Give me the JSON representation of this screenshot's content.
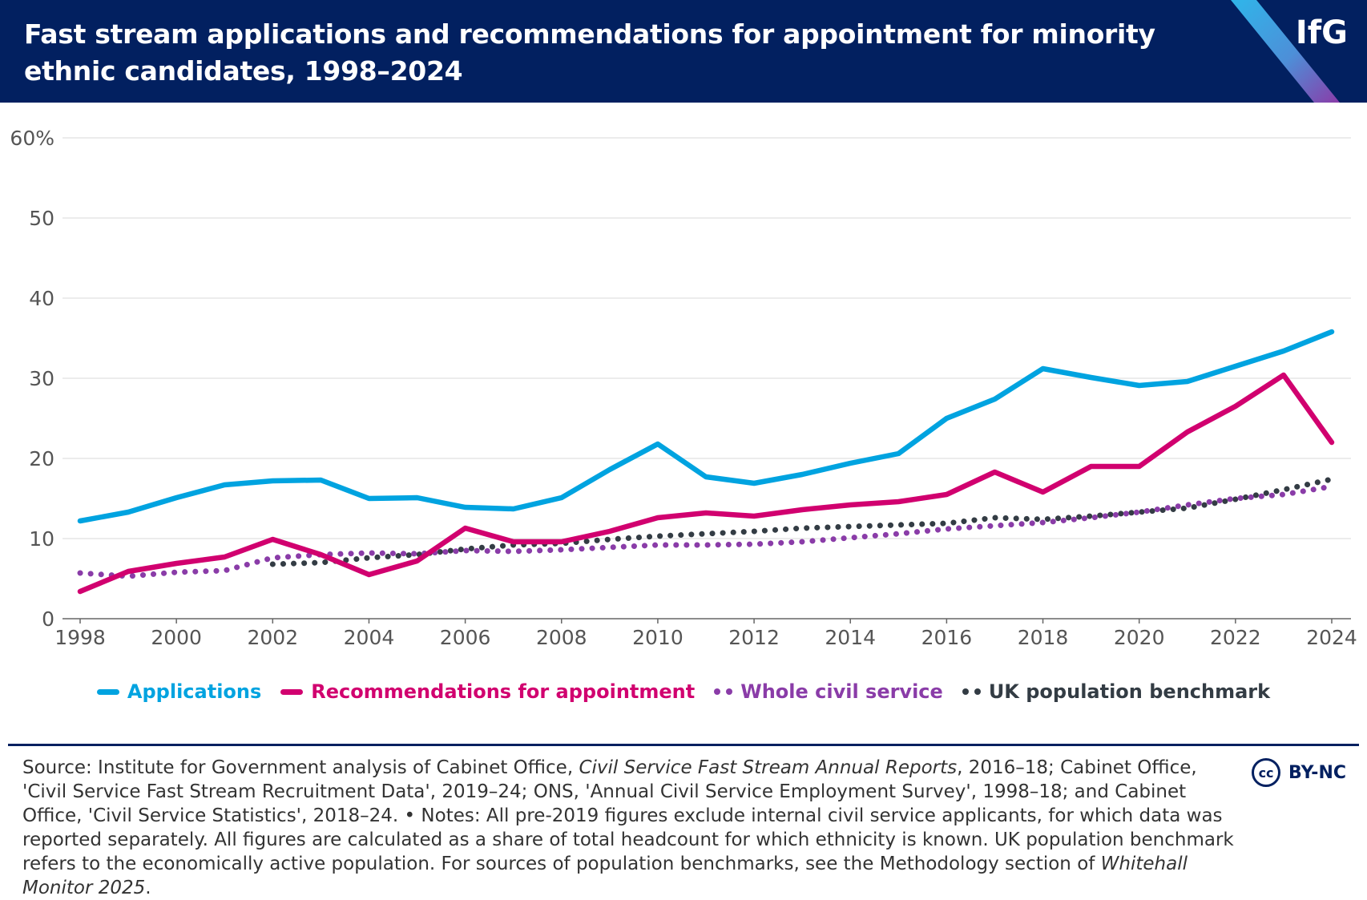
{
  "header": {
    "title": "Fast stream applications and recommendations for appointment for minority ethnic candidates, 1998–2024",
    "logo": "IfG"
  },
  "colors": {
    "header_bg": "#022060",
    "applications": "#00a3e0",
    "recommendations": "#d1006f",
    "whole_civil_service": "#8a3ca8",
    "uk_population": "#333c44",
    "grid": "#e6e6e6"
  },
  "chart_data": {
    "type": "line",
    "title": "Fast stream applications and recommendations for appointment for minority ethnic candidates, 1998–2024",
    "xlabel": "",
    "ylabel": "",
    "xlim": [
      1998,
      2024
    ],
    "ylim": [
      0,
      60
    ],
    "y_ticks": [
      "0",
      "10",
      "20",
      "30",
      "40",
      "50",
      "60%"
    ],
    "x_ticks": [
      "1998",
      "2000",
      "2002",
      "2004",
      "2006",
      "2008",
      "2010",
      "2012",
      "2014",
      "2016",
      "2018",
      "2020",
      "2022",
      "2024"
    ],
    "grid": "horizontal",
    "legend_position": "bottom",
    "series": [
      {
        "name": "Applications",
        "style": "solid",
        "points": [
          [
            1998,
            12.2
          ],
          [
            1999,
            13.3
          ],
          [
            2000,
            15.1
          ],
          [
            2001,
            16.7
          ],
          [
            2002,
            17.2
          ],
          [
            2003,
            17.3
          ],
          [
            2004,
            15.0
          ],
          [
            2005,
            15.1
          ],
          [
            2006,
            13.9
          ],
          [
            2007,
            13.7
          ],
          [
            2008,
            15.1
          ],
          [
            2009,
            18.6
          ],
          [
            2010,
            21.8
          ],
          [
            2011,
            17.7
          ],
          [
            2012,
            16.9
          ],
          [
            2013,
            18.0
          ],
          [
            2014,
            19.4
          ],
          [
            2015,
            20.6
          ],
          [
            2016,
            25.0
          ],
          [
            2017,
            27.4
          ],
          [
            2018,
            31.2
          ],
          [
            2019,
            30.1
          ],
          [
            2020,
            29.1
          ],
          [
            2021,
            29.6
          ],
          [
            2022,
            31.5
          ],
          [
            2023,
            33.4
          ],
          [
            2024,
            35.8
          ]
        ]
      },
      {
        "name": "Recommendations for appointment",
        "style": "solid",
        "points": [
          [
            1998,
            3.4
          ],
          [
            1999,
            5.9
          ],
          [
            2000,
            6.9
          ],
          [
            2001,
            7.7
          ],
          [
            2002,
            9.9
          ],
          [
            2003,
            8.0
          ],
          [
            2004,
            5.5
          ],
          [
            2005,
            7.2
          ],
          [
            2006,
            11.3
          ],
          [
            2007,
            9.6
          ],
          [
            2008,
            9.6
          ],
          [
            2009,
            10.9
          ],
          [
            2010,
            12.6
          ],
          [
            2011,
            13.2
          ],
          [
            2012,
            12.8
          ],
          [
            2013,
            13.6
          ],
          [
            2014,
            14.2
          ],
          [
            2015,
            14.6
          ],
          [
            2016,
            15.5
          ],
          [
            2017,
            18.3
          ],
          [
            2018,
            15.8
          ],
          [
            2019,
            19.0
          ],
          [
            2020,
            19.0
          ],
          [
            2021,
            23.3
          ],
          [
            2022,
            26.5
          ],
          [
            2023,
            30.4
          ],
          [
            2024,
            22.0
          ]
        ]
      },
      {
        "name": "Whole civil service",
        "style": "dotted",
        "points": [
          [
            1998,
            5.7
          ],
          [
            1999,
            5.3
          ],
          [
            2000,
            5.8
          ],
          [
            2001,
            6.0
          ],
          [
            2002,
            7.6
          ],
          [
            2003,
            8.0
          ],
          [
            2004,
            8.2
          ],
          [
            2005,
            8.1
          ],
          [
            2006,
            8.5
          ],
          [
            2007,
            8.4
          ],
          [
            2008,
            8.6
          ],
          [
            2009,
            8.9
          ],
          [
            2010,
            9.2
          ],
          [
            2011,
            9.2
          ],
          [
            2012,
            9.3
          ],
          [
            2013,
            9.6
          ],
          [
            2014,
            10.1
          ],
          [
            2015,
            10.6
          ],
          [
            2016,
            11.2
          ],
          [
            2017,
            11.6
          ],
          [
            2018,
            12.0
          ],
          [
            2019,
            12.6
          ],
          [
            2020,
            13.3
          ],
          [
            2021,
            14.2
          ],
          [
            2022,
            15.0
          ],
          [
            2023,
            15.5
          ],
          [
            2024,
            16.5
          ]
        ]
      },
      {
        "name": "UK population benchmark",
        "style": "dotted",
        "points": [
          [
            2002,
            6.8
          ],
          [
            2003,
            7.0
          ],
          [
            2004,
            7.6
          ],
          [
            2005,
            8.0
          ],
          [
            2006,
            8.7
          ],
          [
            2007,
            9.2
          ],
          [
            2008,
            9.4
          ],
          [
            2009,
            9.9
          ],
          [
            2010,
            10.3
          ],
          [
            2011,
            10.6
          ],
          [
            2012,
            10.9
          ],
          [
            2013,
            11.3
          ],
          [
            2014,
            11.5
          ],
          [
            2015,
            11.7
          ],
          [
            2016,
            11.9
          ],
          [
            2017,
            12.6
          ],
          [
            2018,
            12.4
          ],
          [
            2019,
            12.8
          ],
          [
            2020,
            13.3
          ],
          [
            2021,
            13.8
          ],
          [
            2022,
            14.9
          ],
          [
            2023,
            16.1
          ],
          [
            2024,
            17.4
          ]
        ]
      }
    ]
  },
  "legend": {
    "items": [
      {
        "label": "Applications"
      },
      {
        "label": "Recommendations for appointment"
      },
      {
        "label": "Whole civil service"
      },
      {
        "label": "UK population benchmark"
      }
    ]
  },
  "footer": {
    "source_prefix": "Source: Institute for Government analysis of Cabinet Office, ",
    "source_italic_1": "Civil Service Fast Stream Annual Reports",
    "source_middle": ", 2016–18; Cabinet Office, 'Civil Service Fast Stream Recruitment Data', 2019–24; ONS, 'Annual Civil Service Employment Survey', 1998–18; and Cabinet Office, 'Civil Service Statistics', 2018–24. • Notes: All pre-2019 figures exclude internal civil service applicants, for which data was reported separately. All figures are calculated as a share of total headcount for which ethnicity is known. UK population benchmark refers to the economically active population. For sources of population benchmarks, see the Methodology section of ",
    "source_italic_2": "Whitehall Monitor 2025",
    "source_suffix": ".",
    "license_icon": "cc",
    "license_text": "BY-NC"
  }
}
